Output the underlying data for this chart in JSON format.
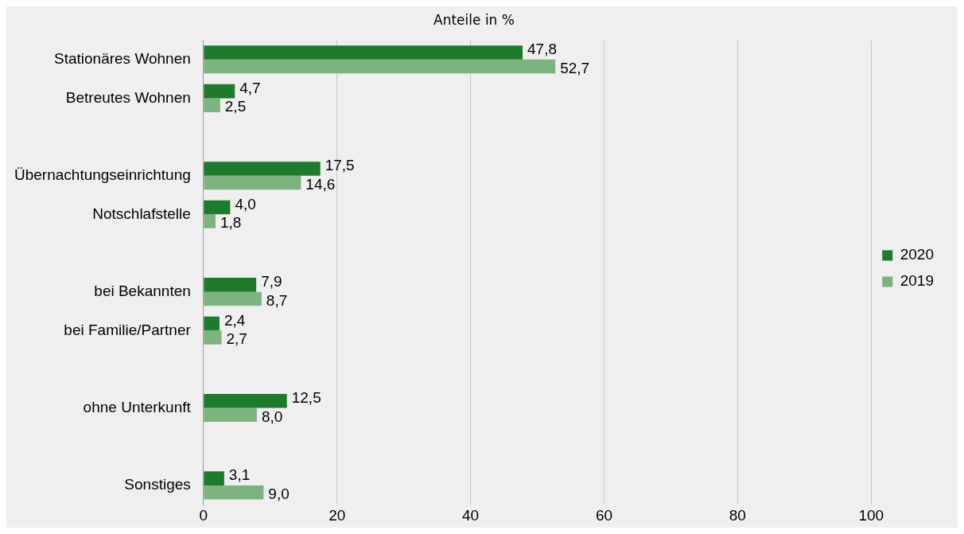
{
  "chart_data": {
    "type": "bar",
    "orientation": "horizontal",
    "title": "Anteile in %",
    "categories": [
      "Stationäres Wohnen",
      "Betreutes Wohnen",
      null,
      "Übernachtungseinrichtung",
      "Notschlafstelle",
      null,
      "bei Bekannten",
      "bei Familie/Partner",
      null,
      "ohne Unterkunft",
      null,
      "Sonstiges"
    ],
    "series": [
      {
        "name": "2020",
        "color": "#1e7b2e",
        "values": [
          47.8,
          4.7,
          null,
          17.5,
          4.0,
          null,
          7.9,
          2.4,
          null,
          12.5,
          null,
          3.1
        ],
        "value_labels": [
          "47,8",
          "4,7",
          null,
          "17,5",
          "4,0",
          null,
          "7,9",
          "2,4",
          null,
          "12,5",
          null,
          "3,1"
        ]
      },
      {
        "name": "2019",
        "color": "#7cb37e",
        "values": [
          52.7,
          2.5,
          null,
          14.6,
          1.8,
          null,
          8.7,
          2.7,
          null,
          8.0,
          null,
          9.0
        ],
        "value_labels": [
          "52,7",
          "2,5",
          null,
          "14,6",
          "1,8",
          null,
          "8,7",
          "2,7",
          null,
          "8,0",
          null,
          "9,0"
        ]
      }
    ],
    "xlim": [
      0,
      100
    ],
    "xticks": [
      0,
      20,
      40,
      60,
      80,
      100
    ],
    "grid": "x",
    "legend": "right"
  }
}
